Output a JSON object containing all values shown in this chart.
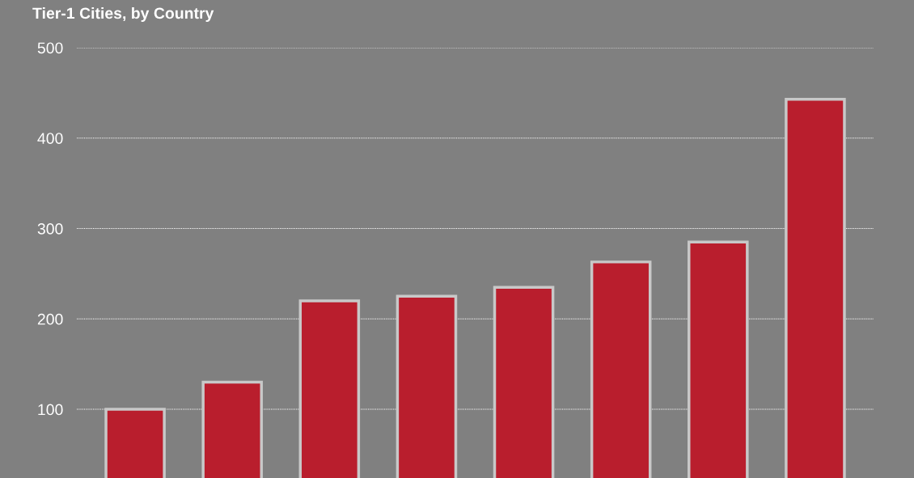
{
  "chart_data": {
    "type": "bar",
    "title": "Tier-1 Cities, by Country",
    "categories": [
      null,
      null,
      null,
      null,
      null,
      null,
      null,
      null
    ],
    "values": [
      100,
      130,
      220,
      225,
      235,
      263,
      285,
      443
    ],
    "color": "#b91e2d",
    "ylim": [
      24,
      500
    ],
    "yticks": [
      100,
      200,
      300,
      400,
      500
    ],
    "grid": "y",
    "tick_labels": "y"
  }
}
